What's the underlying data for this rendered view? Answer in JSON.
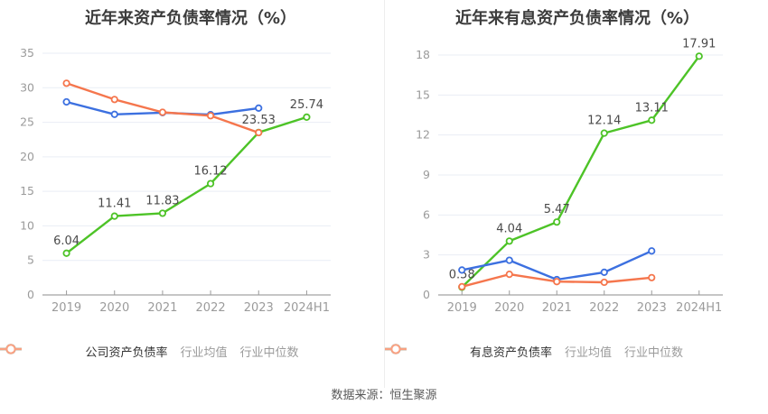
{
  "page": {
    "source_note": "数据来源：恒生聚源"
  },
  "colors": {
    "company_line": "#4dc327",
    "industry_mean_line": "#3c70e0",
    "industry_median_line": "#f5764d",
    "legend_mean_marker": "#84a7f4",
    "legend_median_marker": "#f9a182",
    "legend_text_primary": "#333333",
    "legend_text_secondary": "#9b9b9b",
    "grid_line": "#e9edf5",
    "axis_line": "#8c8c8c",
    "tick_text": "#9b9b9b",
    "data_label_text": "#4a4a4a",
    "title_text": "#3c3c3c",
    "divider": "#ededed",
    "source_text": "#595959",
    "marker_fill": "#ffffff"
  },
  "chart_data": [
    {
      "type": "line",
      "title": "近年来资产负债率情况（%）",
      "categories": [
        "2019",
        "2020",
        "2021",
        "2022",
        "2023",
        "2024H1"
      ],
      "ylim": [
        0,
        35
      ],
      "ytick_step": 5,
      "grid": true,
      "legend_position": "bottom",
      "series": [
        {
          "name": "公司资产负债率",
          "role": "company",
          "values": [
            6.04,
            11.41,
            11.83,
            16.12,
            23.53,
            25.74
          ],
          "point_labels": [
            "6.04",
            "11.41",
            "11.83",
            "16.12",
            "23.53",
            "25.74"
          ]
        },
        {
          "name": "行业均值",
          "role": "industry_mean",
          "values": [
            27.95,
            26.15,
            26.4,
            26.1,
            27.05
          ]
        },
        {
          "name": "行业中位数",
          "role": "industry_median",
          "values": [
            30.65,
            28.3,
            26.45,
            25.95,
            23.5
          ]
        }
      ]
    },
    {
      "type": "line",
      "title": "近年来有息资产负债率情况（%）",
      "categories": [
        "2019",
        "2020",
        "2021",
        "2022",
        "2023",
        "2024H1"
      ],
      "ylim": [
        0,
        18
      ],
      "ytick_step": 3,
      "grid": true,
      "legend_position": "bottom",
      "series": [
        {
          "name": "有息资产负债率",
          "role": "company",
          "values": [
            0.58,
            4.04,
            5.47,
            12.14,
            13.11,
            17.91
          ],
          "point_labels": [
            "0.58",
            "4.04",
            "5.47",
            "12.14",
            "13.11",
            "17.91"
          ]
        },
        {
          "name": "行业均值",
          "role": "industry_mean",
          "values": [
            1.87,
            2.6,
            1.15,
            1.7,
            3.3
          ]
        },
        {
          "name": "行业中位数",
          "role": "industry_median",
          "values": [
            0.62,
            1.55,
            1.0,
            0.95,
            1.3
          ]
        }
      ]
    }
  ]
}
